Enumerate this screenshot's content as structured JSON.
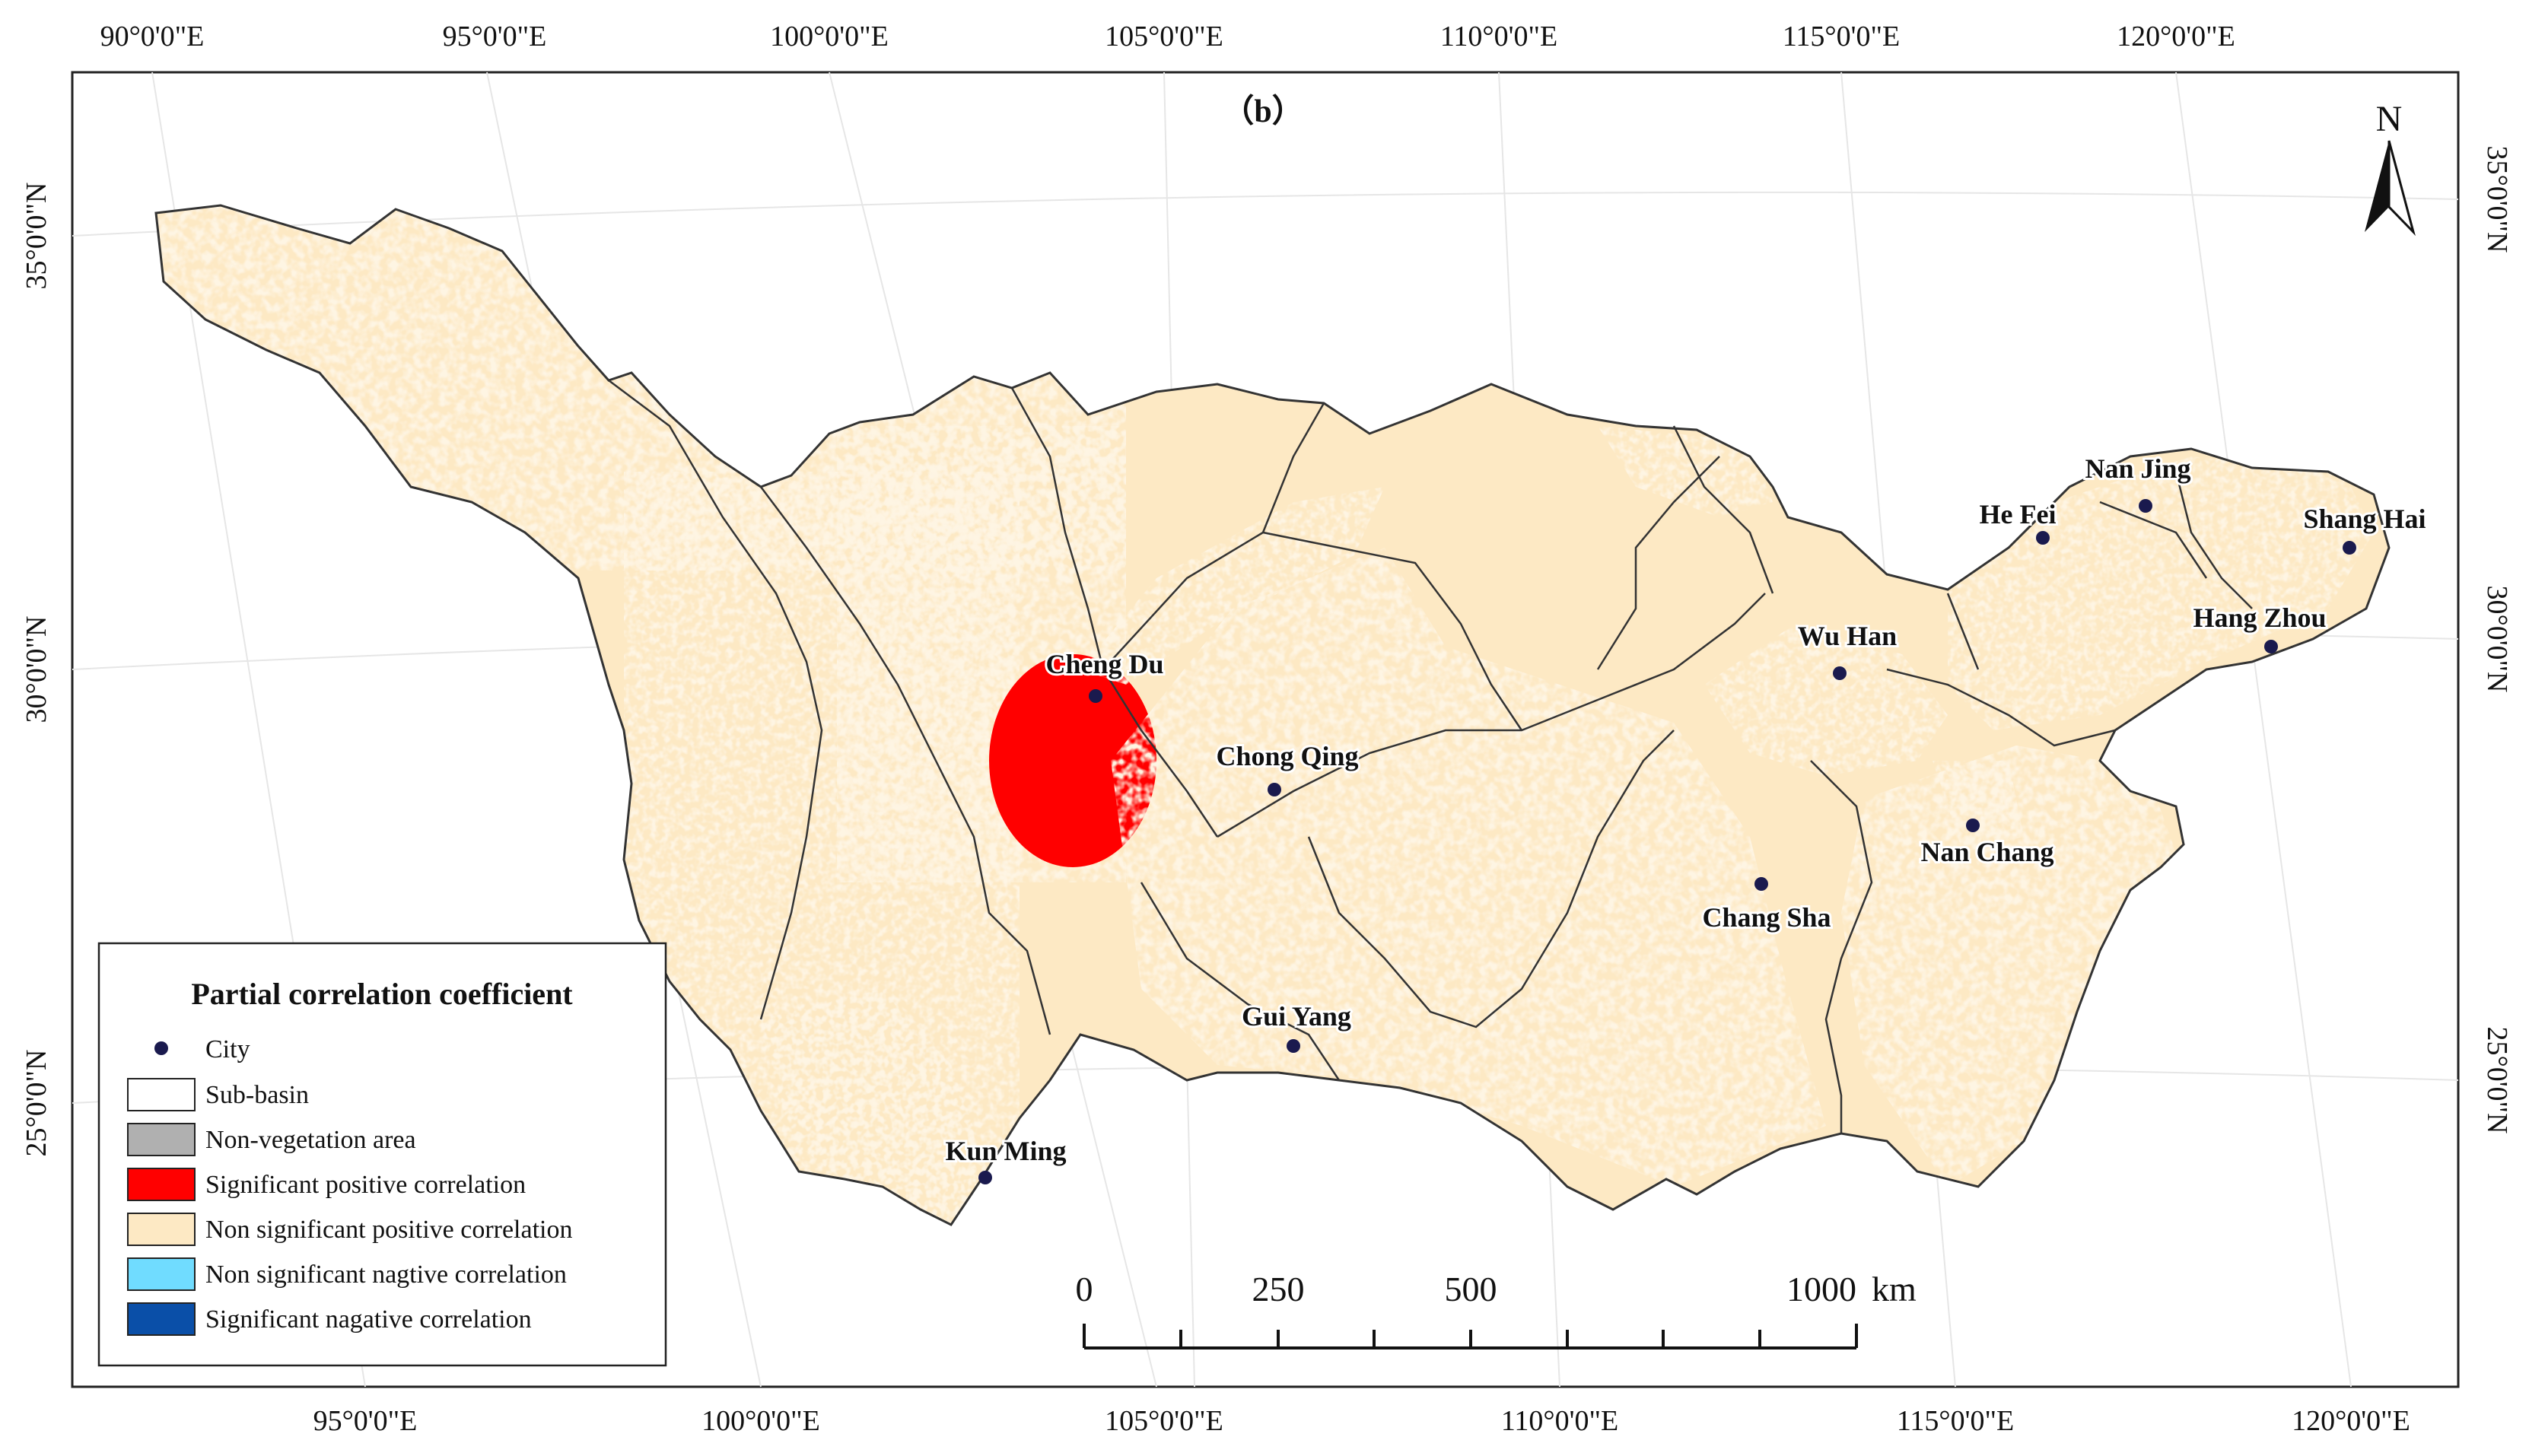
{
  "panel_label": "（b）",
  "north_arrow": {
    "label": "N"
  },
  "graticule": {
    "top_lon": [
      "90°0'0\"E",
      "95°0'0\"E",
      "100°0'0\"E",
      "105°0'0\"E",
      "110°0'0\"E",
      "115°0'0\"E",
      "120°0'0\"E"
    ],
    "bottom_lon": [
      "95°0'0\"E",
      "100°0'0\"E",
      "105°0'0\"E",
      "110°0'0\"E",
      "115°0'0\"E",
      "120°0'0\"E"
    ],
    "left_lat": [
      "35°0'0\"N",
      "30°0'0\"N",
      "25°0'0\"N"
    ],
    "right_lat": [
      "35°0'0\"N",
      "30°0'0\"N",
      "25°0'0\"N"
    ]
  },
  "cities": [
    {
      "name": "Cheng Du"
    },
    {
      "name": "Chong Qing"
    },
    {
      "name": "Gui Yang"
    },
    {
      "name": "Kun Ming"
    },
    {
      "name": "Chang Sha"
    },
    {
      "name": "Wu Han"
    },
    {
      "name": "Nan Chang"
    },
    {
      "name": "He Fei"
    },
    {
      "name": "Nan Jing"
    },
    {
      "name": "Shang Hai"
    },
    {
      "name": "Hang Zhou"
    }
  ],
  "legend": {
    "title": "Partial correlation coefficient",
    "items": [
      {
        "label": "City",
        "symbol": "dot",
        "color": "#1a1a4e"
      },
      {
        "label": "Sub-basin",
        "symbol": "box",
        "color": "#ffffff"
      },
      {
        "label": "Non-vegetation area",
        "symbol": "box",
        "color": "#b0b0b0"
      },
      {
        "label": "Significant positive correlation",
        "symbol": "box",
        "color": "#ff0000"
      },
      {
        "label": "Non significant positive correlation",
        "symbol": "box",
        "color": "#fde9c4"
      },
      {
        "label": "Non significant nagtive correlation",
        "symbol": "box",
        "color": "#70dcff"
      },
      {
        "label": "Significant nagative correlation",
        "symbol": "box",
        "color": "#0a4fa8"
      }
    ]
  },
  "scale_bar": {
    "labels": [
      "0",
      "250",
      "500",
      "1000"
    ],
    "unit": "km"
  }
}
